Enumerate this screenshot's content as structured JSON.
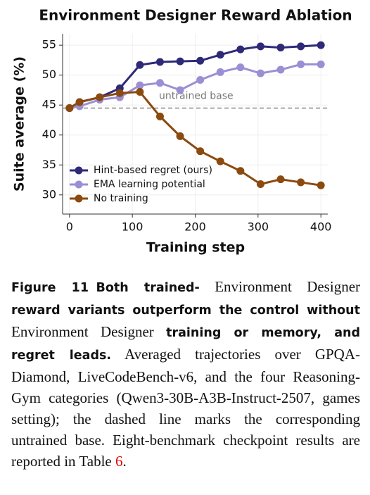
{
  "chart_data": {
    "type": "line",
    "title": "Environment Designer Reward Ablation",
    "x_label": "Training step",
    "y_label": "Suite average (%)",
    "x": [
      0,
      16,
      48,
      80,
      112,
      144,
      176,
      208,
      240,
      272,
      304,
      336,
      368,
      400
    ],
    "series": [
      {
        "name": "Hint-based regret (ours)",
        "color": "#2e2a78",
        "values": [
          44.5,
          45.5,
          46.3,
          47.8,
          51.7,
          52.2,
          52.3,
          52.4,
          53.4,
          54.3,
          54.8,
          54.6,
          54.8,
          55.0
        ]
      },
      {
        "name": "EMA learning potential",
        "color": "#9b8fd4",
        "values": [
          44.5,
          44.8,
          45.9,
          46.3,
          48.3,
          48.7,
          47.5,
          49.2,
          50.5,
          51.3,
          50.3,
          50.9,
          51.8,
          51.8
        ]
      },
      {
        "name": "No training",
        "color": "#8b4a0f",
        "values": [
          44.5,
          45.5,
          46.3,
          47.0,
          47.2,
          43.1,
          39.8,
          37.3,
          35.6,
          34.0,
          31.8,
          32.6,
          32.1,
          31.6
        ]
      }
    ],
    "baseline": 44.5,
    "annotation": "untrained base",
    "xlim": [
      -11,
      411
    ],
    "ylim": [
      26.8,
      56.9
    ],
    "xticks": [
      0,
      100,
      200,
      300,
      400
    ],
    "yticks": [
      30,
      35,
      40,
      45,
      50,
      55
    ],
    "grid": true,
    "legend": "lower-left"
  },
  "caption": [
    {
      "text": "Figure 11",
      "bold": true
    },
    {
      "text": "Both trained-",
      "bold": true
    },
    {
      "text": "Environment Designer",
      "bold": false
    },
    {
      "text": "reward variants outperform the control without",
      "bold": true
    },
    {
      "text": "Environment Designer",
      "bold": false
    },
    {
      "text": "training or memory, and regret leads.",
      "bold": true
    },
    {
      "text": "Averaged trajectories over GPQA-Diamond, LiveCodeBench-v6, and the four Reasoning-Gym categories (Qwen3-30B-A3B-Instruct-2507, games setting); the dashed line marks the corresponding untrained base. Eight-benchmark checkpoint results are reported in Table",
      "bold": false
    },
    {
      "text": "6",
      "bold": false,
      "color": "#e00000"
    },
    {
      "text": ".",
      "bold": false
    }
  ]
}
